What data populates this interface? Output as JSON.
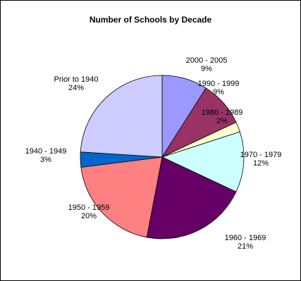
{
  "chart_data": {
    "type": "pie",
    "title": "Number of Schools by Decade",
    "slices": [
      {
        "label": "2000 - 2005",
        "value": 9,
        "value_label": "9%",
        "color": "#9999ff"
      },
      {
        "label": "1990 - 1999",
        "value": 9,
        "value_label": "9%",
        "color": "#993366"
      },
      {
        "label": "1980 - 1989",
        "value": 2,
        "value_label": "2%",
        "color": "#ffffcc"
      },
      {
        "label": "1970 - 1979",
        "value": 12,
        "value_label": "12%",
        "color": "#ccffff"
      },
      {
        "label": "1960 - 1969",
        "value": 21,
        "value_label": "21%",
        "color": "#660066"
      },
      {
        "label": "1950 - 1959",
        "value": 20,
        "value_label": "20%",
        "color": "#ff8080"
      },
      {
        "label": "1940 - 1949",
        "value": 3,
        "value_label": "3%",
        "color": "#0066cc"
      },
      {
        "label": "Prior to 1940",
        "value": 24,
        "value_label": "24%",
        "color": "#ccccff"
      }
    ],
    "legend": "none"
  }
}
